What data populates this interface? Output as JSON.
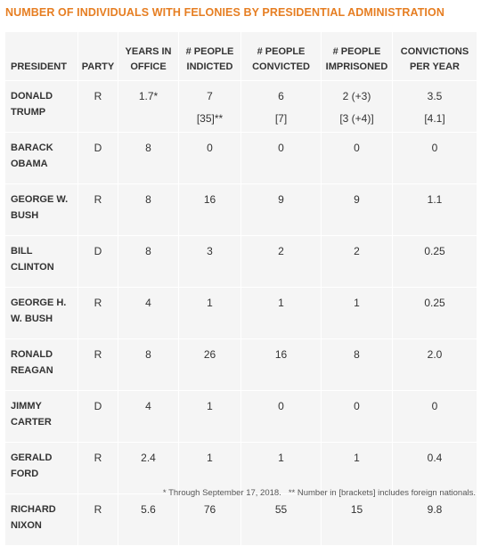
{
  "title": "NUMBER OF INDIVIDUALS WITH FELONIES BY PRESIDENTIAL ADMINISTRATION",
  "accent_color": "#e67e22",
  "headers": {
    "president": "PRESIDENT",
    "party": "PARTY",
    "years_1": "YEARS IN",
    "years_2": "OFFICE",
    "indicted_1": "# PEOPLE",
    "indicted_2": "INDICTED",
    "convicted_1": "# PEOPLE",
    "convicted_2": "CONVICTED",
    "imprisoned_1": "# PEOPLE",
    "imprisoned_2": "IMPRISONED",
    "per_year_1": "CONVICTIONS",
    "per_year_2": "PER YEAR"
  },
  "rows": [
    {
      "name1": "DONALD",
      "name2": "TRUMP",
      "party": "R",
      "years": "1.7*",
      "indicted": "7",
      "indicted_sub": "[35]**",
      "convicted": "6",
      "convicted_sub": "[7]",
      "imprisoned": "2 (+3)",
      "imprisoned_sub": "[3 (+4)]",
      "per_year": "3.5",
      "per_year_sub": "[4.1]"
    },
    {
      "name1": "BARACK",
      "name2": "OBAMA",
      "party": "D",
      "years": "8",
      "indicted": "0",
      "convicted": "0",
      "imprisoned": "0",
      "per_year": "0"
    },
    {
      "name1": "GEORGE W.",
      "name2": "BUSH",
      "party": "R",
      "years": "8",
      "indicted": "16",
      "convicted": "9",
      "imprisoned": "9",
      "per_year": "1.1"
    },
    {
      "name1": "BILL",
      "name2": "CLINTON",
      "party": "D",
      "years": "8",
      "indicted": "3",
      "convicted": "2",
      "imprisoned": "2",
      "per_year": "0.25"
    },
    {
      "name1": "GEORGE H.",
      "name2": "W. BUSH",
      "party": "R",
      "years": "4",
      "indicted": "1",
      "convicted": "1",
      "imprisoned": "1",
      "per_year": "0.25"
    },
    {
      "name1": "RONALD",
      "name2": "REAGAN",
      "party": "R",
      "years": "8",
      "indicted": "26",
      "convicted": "16",
      "imprisoned": "8",
      "per_year": "2.0"
    },
    {
      "name1": "JIMMY",
      "name2": "CARTER",
      "party": "D",
      "years": "4",
      "indicted": "1",
      "convicted": "0",
      "imprisoned": "0",
      "per_year": "0"
    },
    {
      "name1": "GERALD",
      "name2": "FORD",
      "party": "R",
      "years": "2.4",
      "indicted": "1",
      "convicted": "1",
      "imprisoned": "1",
      "per_year": "0.4"
    },
    {
      "name1": "RICHARD",
      "name2": "NIXON",
      "party": "R",
      "years": "5.6",
      "indicted": "76",
      "convicted": "55",
      "imprisoned": "15",
      "per_year": "9.8"
    }
  ],
  "footnotes": {
    "note1": "* Through September 17, 2018.",
    "note2": "** Number in [brackets] includes foreign nationals."
  }
}
